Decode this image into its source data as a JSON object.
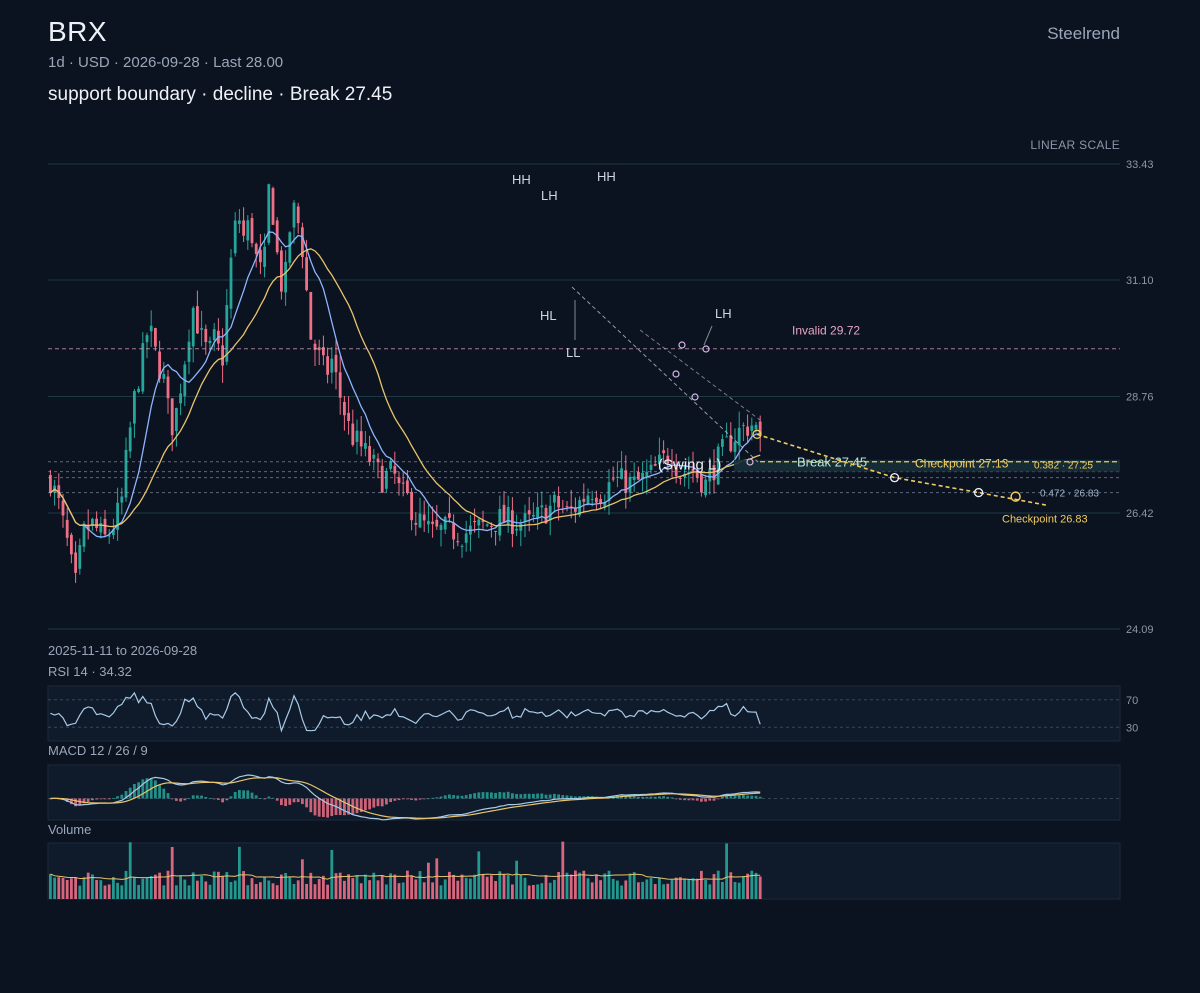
{
  "header": {
    "ticker": "BRX",
    "subtitle": "1d · USD · 2026-09-28 · Last 28.00",
    "annotation": "support boundary · decline · Break 27.45",
    "brand": "Steelrend",
    "scale_label": "LINEAR SCALE",
    "date_range": "2025-11-11 to 2026-09-28"
  },
  "colors": {
    "background": "#0b1220",
    "up": "#26a69a",
    "down": "#ef6f86",
    "ma_fast": "#8fb4ff",
    "ma_slow": "#e9c46a",
    "checkpoint": "#f2cc60",
    "invalid": "#e7a7c4"
  },
  "chart_data": {
    "type": "candlestick",
    "y_ticks": [
      33.43,
      31.1,
      28.76,
      26.42,
      24.09
    ],
    "ylim": [
      24.09,
      33.43
    ],
    "grid": true,
    "bars": 170,
    "last": 28.0,
    "swing_labels": [
      {
        "label": "HH",
        "bar": 113,
        "price": 32.85
      },
      {
        "label": "LH",
        "bar": 120,
        "price": 32.4
      },
      {
        "label": "HH",
        "bar": 134,
        "price": 32.8
      },
      {
        "label": "HL",
        "bar": 119,
        "price": 30.95
      },
      {
        "label": "LL",
        "bar": 126,
        "price": 30.35
      },
      {
        "label": "LH",
        "bar": 160,
        "price": 29.7
      }
    ],
    "levels": {
      "invalid": {
        "label": "Invalid 29.72",
        "value": 29.72
      },
      "break": {
        "label": "Break 27.45",
        "value": 27.45
      },
      "swing_low_label": "(Swing L)",
      "checkpoints": [
        {
          "label": "Checkpoint 27.13",
          "value": 27.13
        },
        {
          "label": "Checkpoint 26.83",
          "value": 26.83
        }
      ],
      "fibs": [
        {
          "label": "0.382 · 27.25",
          "value": 27.25
        },
        {
          "label": "0.472 · 26.83",
          "value": 26.83
        }
      ],
      "projection": [
        [
          170,
          28.0
        ],
        [
          201,
          27.13
        ],
        [
          221,
          26.83
        ],
        [
          237,
          26.58
        ]
      ]
    },
    "rsi": {
      "title": "RSI 14 · 34.32",
      "levels": [
        70,
        30
      ],
      "last": 34.32
    },
    "macd": {
      "title": "MACD 12 / 26 / 9",
      "params": [
        12,
        26,
        9
      ]
    },
    "volume": {
      "title": "Volume"
    }
  }
}
